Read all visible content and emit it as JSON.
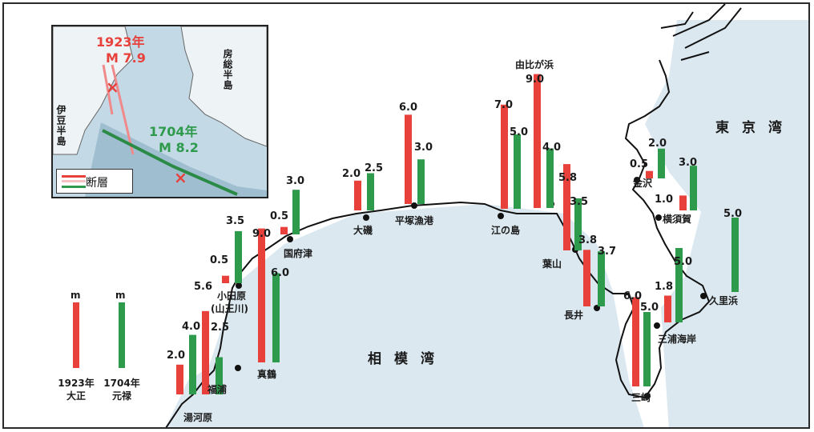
{
  "inset": {
    "eq1923": {
      "year": "1923年",
      "mag": "M 7.9"
    },
    "eq1704": {
      "year": "1704年",
      "mag": "M 8.2"
    },
    "boso": "房総半島",
    "izu": "伊豆半島",
    "fault_label": "断層"
  },
  "bays": {
    "sagami": "相模湾",
    "tokyo": "東京湾"
  },
  "legend": {
    "unit_red": "m",
    "unit_green": "m",
    "red_line1": "1923年",
    "red_line2": "大正",
    "green_line1": "1704年",
    "green_line2": "元禄"
  },
  "colors": {
    "red": "#e8403a",
    "green": "#2e9a4c",
    "sea": "#dbe8f0",
    "coast": "#111111"
  },
  "tsunami_bars": [
    {
      "series": "1923",
      "value": 2.0
    },
    {
      "series": "1704",
      "value": 4.0
    },
    {
      "series": "1923",
      "value": 5.6
    },
    {
      "series": "1704",
      "value": 2.5
    },
    {
      "series": "1923",
      "value": 0.5
    },
    {
      "series": "1704",
      "value": 3.5
    },
    {
      "series": "1923",
      "value": 9.0
    },
    {
      "series": "1704",
      "value": 6.0
    },
    {
      "series": "1923",
      "value": 0.5
    },
    {
      "series": "1704",
      "value": 3.0
    },
    {
      "series": "1923",
      "value": 2.0
    },
    {
      "series": "1704",
      "value": 2.5
    },
    {
      "series": "1923",
      "value": 6.0
    },
    {
      "series": "1704",
      "value": 3.0
    },
    {
      "series": "1923",
      "value": 7.0
    },
    {
      "series": "1704",
      "value": 5.0
    },
    {
      "series": "1923",
      "value": 9.0
    },
    {
      "series": "1704",
      "value": 4.0
    },
    {
      "series": "1923",
      "value": 5.8
    },
    {
      "series": "1704",
      "value": 3.5
    },
    {
      "series": "1923",
      "value": 3.8
    },
    {
      "series": "1704",
      "value": 3.7
    },
    {
      "series": "1923",
      "value": 6.0
    },
    {
      "series": "1704",
      "value": 5.0
    },
    {
      "series": "1923",
      "value": 1.8
    },
    {
      "series": "1704",
      "value": 5.0
    },
    {
      "series": "1923",
      "value": 0.5
    },
    {
      "series": "1704",
      "value": 2.0
    },
    {
      "series": "1923",
      "value": 1.0
    },
    {
      "series": "1704",
      "value": 3.0
    },
    {
      "series": "1704",
      "value": 5.0
    }
  ],
  "value_labels": [
    "2.0",
    "4.0",
    "5.6",
    "2.5",
    "0.5",
    "3.5",
    "9.0",
    "6.0",
    "0.5",
    "3.0",
    "2.0",
    "2.5",
    "6.0",
    "3.0",
    "7.0",
    "5.0",
    "9.0",
    "4.0",
    "5.8",
    "3.5",
    "3.8",
    "3.7",
    "6.0",
    "5.0",
    "1.8",
    "5.0",
    "0.5",
    "2.0",
    "1.0",
    "3.0",
    "5.0"
  ],
  "places": {
    "yugawara": "湯河原",
    "fukuura": "福浦",
    "manazuru": "真鶴",
    "odawara1": "小田原",
    "odawara2": "(山王川)",
    "kozu": "国府津",
    "oiso": "大磯",
    "hiratsuka": "平塚漁港",
    "enoshima": "江の島",
    "yuigahama": "由比が浜",
    "hayama": "葉山",
    "nagai": "長井",
    "misaki": "三崎",
    "miura": "三浦海岸",
    "kurihama": "久里浜",
    "yokosuka": "横須賀",
    "kanazawa": "金沢"
  }
}
